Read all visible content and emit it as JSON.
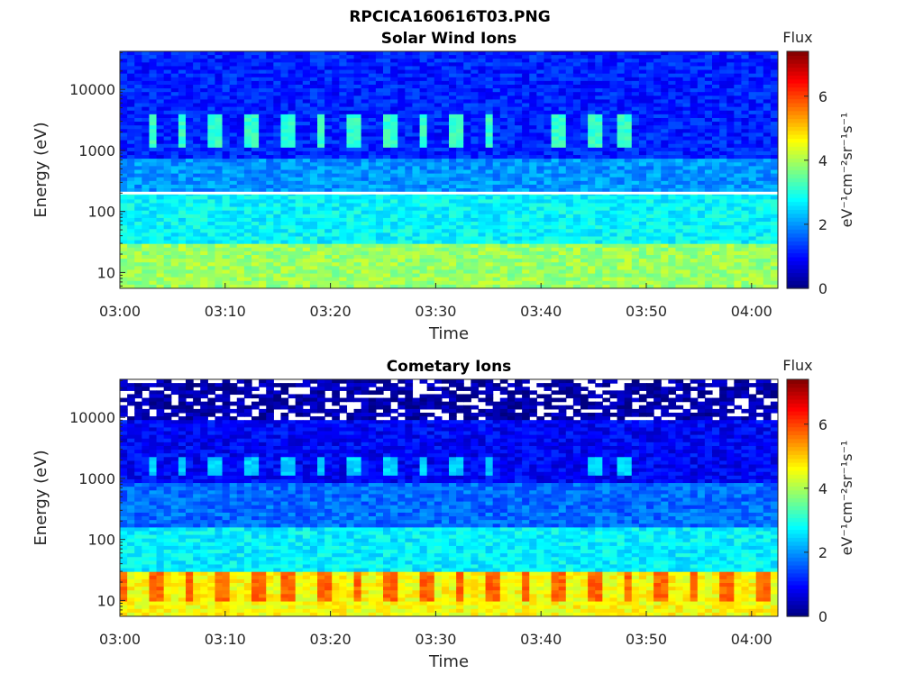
{
  "figure_title": "RPCICA160616T03.PNG",
  "chart_data": [
    {
      "type": "heatmap",
      "title": "Solar Wind Ions",
      "xlabel": "Time",
      "ylabel": "Energy (eV)",
      "y_scale": "log",
      "ylim": [
        5.5,
        42000
      ],
      "x_ticks": [
        "03:00",
        "03:10",
        "03:20",
        "03:30",
        "03:40",
        "03:50",
        "04:00"
      ],
      "x_range_minutes": [
        0,
        62.5
      ],
      "y_ticks": [
        {
          "value": 10,
          "label": "10"
        },
        {
          "value": 100,
          "label": "100"
        },
        {
          "value": 1000,
          "label": "1000"
        },
        {
          "value": 10000,
          "label": "10000"
        }
      ],
      "colorbar": {
        "title": "Flux",
        "label": "eV⁻¹cm⁻²sr⁻¹s⁻¹",
        "range": [
          0,
          7.4
        ],
        "ticks": [
          "0",
          "2",
          "4",
          "6"
        ],
        "colormap": "jet"
      },
      "bands": [
        {
          "e_min": 5.5,
          "e_max": 28,
          "level": 3.9
        },
        {
          "e_min": 28,
          "e_max": 200,
          "level": 2.75
        },
        {
          "e_min": 200,
          "e_max": 700,
          "level": 2.0
        },
        {
          "e_min": 700,
          "e_max": 42000,
          "level": 1.15
        }
      ],
      "features": [
        {
          "name": "sweep-gap",
          "energy": 200
        },
        {
          "name": "proton-peaks",
          "energy_range": [
            1100,
            4000
          ],
          "level": 2.9,
          "times_minutes": [
            3,
            6,
            9,
            12.3,
            15.8,
            19,
            22.2,
            25.5,
            28.8,
            31.8,
            35,
            41.5,
            45,
            48
          ]
        }
      ]
    },
    {
      "type": "heatmap",
      "title": "Cometary Ions",
      "xlabel": "Time",
      "ylabel": "Energy (eV)",
      "y_scale": "log",
      "ylim": [
        5.5,
        42000
      ],
      "x_ticks": [
        "03:00",
        "03:10",
        "03:20",
        "03:30",
        "03:40",
        "03:50",
        "04:00"
      ],
      "x_range_minutes": [
        0,
        62.5
      ],
      "y_ticks": [
        {
          "value": 10,
          "label": "10"
        },
        {
          "value": 100,
          "label": "100"
        },
        {
          "value": 1000,
          "label": "1000"
        },
        {
          "value": 10000,
          "label": "10000"
        }
      ],
      "colorbar": {
        "title": "Flux",
        "label": "eV⁻¹cm⁻²sr⁻¹s⁻¹",
        "range": [
          0,
          7.4
        ],
        "ticks": [
          "0",
          "2",
          "4",
          "6"
        ],
        "colormap": "jet"
      },
      "bands": [
        {
          "e_min": 5.5,
          "e_max": 30,
          "level": 4.6
        },
        {
          "e_min": 30,
          "e_max": 150,
          "level": 2.7
        },
        {
          "e_min": 150,
          "e_max": 800,
          "level": 1.7
        },
        {
          "e_min": 800,
          "e_max": 9000,
          "level": 0.9
        },
        {
          "e_min": 9000,
          "e_max": 42000,
          "level": 0.3,
          "sparse": true
        }
      ],
      "features": [
        {
          "name": "proton-peaks",
          "energy_range": [
            1100,
            2200
          ],
          "level": 2.2,
          "times_minutes": [
            3,
            6,
            9,
            12.3,
            15.8,
            19,
            22.2,
            25.5,
            28.8,
            31.8,
            35,
            45,
            48
          ]
        },
        {
          "name": "low-energy-peaks",
          "energy_range": [
            9,
            28
          ],
          "level": 5.5,
          "times_minutes": [
            0.3,
            3.5,
            6.6,
            9.8,
            13,
            16.1,
            19.3,
            22.5,
            25.8,
            29,
            32.2,
            35.4,
            38.6,
            41.8,
            45,
            48.2,
            51.4,
            54.6,
            57.8,
            61
          ]
        }
      ]
    }
  ]
}
